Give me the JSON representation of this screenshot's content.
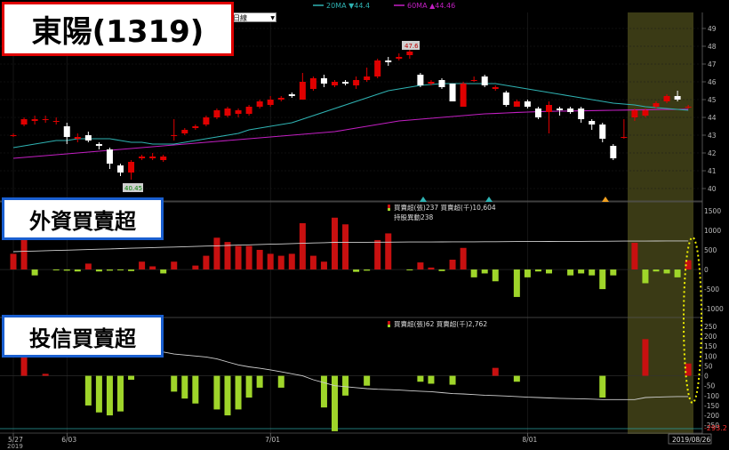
{
  "title": "東陽(1319)",
  "period_select": "日線",
  "legend": {
    "ma20": "20MA ▼44.4",
    "ma60": "60MA ▲44.46"
  },
  "price_labels": {
    "high": "47.6",
    "low": "40.45"
  },
  "price_axis": {
    "min": 39.3,
    "max": 49.9,
    "ticks": [
      "40",
      "41",
      "42",
      "43",
      "44",
      "45",
      "46",
      "47",
      "48",
      "49"
    ]
  },
  "foreign_panel": {
    "title": "外資買賣超",
    "info1": "買賣超(張)237 買賣超(千)10,604",
    "info2": "持股異動238",
    "axis": {
      "min": -1200,
      "max": 1700,
      "ticks": [
        "1500",
        "1000",
        "500",
        "0",
        "-500",
        "-1000"
      ]
    }
  },
  "trust_panel": {
    "title": "投信買賣超",
    "info1": "買賣超(張)62 買賣超(千)2,762",
    "axis": {
      "min": -285,
      "max": 290,
      "ticks": [
        "250",
        "200",
        "150",
        "100",
        "50",
        "0",
        "-50",
        "-100",
        "-150",
        "-200",
        "-250"
      ]
    },
    "last_value_label": "-293.2"
  },
  "date_labels": [
    "5/27",
    "6/03",
    "7/01",
    "8/01"
  ],
  "year_label": "2019",
  "current_date": "2019/08/26",
  "colors": {
    "up": "#e00000",
    "down": "#ffffff",
    "ma20": "#2fb3b3",
    "ma60": "#c21fc2",
    "buy": "#c81010",
    "sell": "#9fd52a",
    "highlight": "#3a3a15",
    "ellipse": "#f2f200"
  },
  "chart_data": {
    "type": "candlestick",
    "candles": [
      [
        43.0,
        43.0,
        42.9,
        43.1
      ],
      [
        43.6,
        43.9,
        43.5,
        44.0
      ],
      [
        43.8,
        43.9,
        43.6,
        44.1
      ],
      [
        43.9,
        43.9,
        43.7,
        44.1
      ],
      [
        43.8,
        43.8,
        43.6,
        44.0
      ],
      [
        43.5,
        42.9,
        42.5,
        43.7
      ],
      [
        42.8,
        42.9,
        42.6,
        43.1
      ],
      [
        43.0,
        42.7,
        42.6,
        43.2
      ],
      [
        42.5,
        42.4,
        42.2,
        42.6
      ],
      [
        42.2,
        41.4,
        41.1,
        42.3
      ],
      [
        41.3,
        40.9,
        40.7,
        41.4
      ],
      [
        40.9,
        41.5,
        40.5,
        41.6
      ],
      [
        41.7,
        41.8,
        41.6,
        41.9
      ],
      [
        41.7,
        41.8,
        41.6,
        42.0
      ],
      [
        41.6,
        41.8,
        41.5,
        41.9
      ],
      [
        43.0,
        43.0,
        42.7,
        43.9
      ],
      [
        43.1,
        43.3,
        43.0,
        43.4
      ],
      [
        43.4,
        43.5,
        43.3,
        43.6
      ],
      [
        43.6,
        44.0,
        43.5,
        44.1
      ],
      [
        44.0,
        44.4,
        43.9,
        44.5
      ],
      [
        44.1,
        44.5,
        44.0,
        44.6
      ],
      [
        44.2,
        44.4,
        44.0,
        44.5
      ],
      [
        44.2,
        44.6,
        44.1,
        44.7
      ],
      [
        44.6,
        44.9,
        44.5,
        45.0
      ],
      [
        44.7,
        45.0,
        44.6,
        45.2
      ],
      [
        45.0,
        45.1,
        44.9,
        45.2
      ],
      [
        45.3,
        45.2,
        45.1,
        45.4
      ],
      [
        45.0,
        46.0,
        45.0,
        46.5
      ],
      [
        45.6,
        46.2,
        45.5,
        46.3
      ],
      [
        46.2,
        45.9,
        45.7,
        46.4
      ],
      [
        45.8,
        46.0,
        45.7,
        46.1
      ],
      [
        46.0,
        45.9,
        45.8,
        46.1
      ],
      [
        45.8,
        46.1,
        45.6,
        46.3
      ],
      [
        46.1,
        46.3,
        46.0,
        46.8
      ],
      [
        46.3,
        47.2,
        46.2,
        47.3
      ],
      [
        47.2,
        47.1,
        46.9,
        47.4
      ],
      [
        47.3,
        47.4,
        47.2,
        47.6
      ],
      [
        47.5,
        47.7,
        47.3,
        47.9
      ],
      [
        46.4,
        45.8,
        45.7,
        46.5
      ],
      [
        45.9,
        46.0,
        45.8,
        46.1
      ],
      [
        46.1,
        45.7,
        45.6,
        46.2
      ],
      [
        45.9,
        44.9,
        44.9,
        45.9
      ],
      [
        44.6,
        45.9,
        44.6,
        46.0
      ],
      [
        46.1,
        46.1,
        46.0,
        46.3
      ],
      [
        46.3,
        45.8,
        45.7,
        46.4
      ],
      [
        45.6,
        45.7,
        45.5,
        45.8
      ],
      [
        45.4,
        44.7,
        44.6,
        45.5
      ],
      [
        44.6,
        44.9,
        44.6,
        45.0
      ],
      [
        44.9,
        44.6,
        44.5,
        45.0
      ],
      [
        44.5,
        44.0,
        43.9,
        44.6
      ],
      [
        44.3,
        44.7,
        43.1,
        44.9
      ],
      [
        44.5,
        44.4,
        44.1,
        44.6
      ],
      [
        44.5,
        44.3,
        44.2,
        44.6
      ],
      [
        44.5,
        43.9,
        43.7,
        44.6
      ],
      [
        43.8,
        43.6,
        43.3,
        43.9
      ],
      [
        43.6,
        42.8,
        42.6,
        43.7
      ],
      [
        42.4,
        41.7,
        41.6,
        42.5
      ],
      [
        42.9,
        42.9,
        42.8,
        43.9
      ],
      [
        44.0,
        44.4,
        43.8,
        44.5
      ],
      [
        44.1,
        44.4,
        44.0,
        44.5
      ],
      [
        44.6,
        44.8,
        44.5,
        44.9
      ],
      [
        44.9,
        45.2,
        44.8,
        45.3
      ],
      [
        45.2,
        45.0,
        44.9,
        45.5
      ],
      [
        44.6,
        44.6,
        44.5,
        44.7
      ]
    ],
    "ma20": [
      42.3,
      42.4,
      42.5,
      42.6,
      42.7,
      42.7,
      42.8,
      42.8,
      42.8,
      42.8,
      42.7,
      42.6,
      42.6,
      42.5,
      42.5,
      42.5,
      42.6,
      42.7,
      42.8,
      42.9,
      43.0,
      43.1,
      43.3,
      43.4,
      43.5,
      43.6,
      43.7,
      43.9,
      44.1,
      44.3,
      44.5,
      44.7,
      44.9,
      45.1,
      45.3,
      45.5,
      45.6,
      45.7,
      45.8,
      45.85,
      45.9,
      45.9,
      45.9,
      45.9,
      45.9,
      45.9,
      45.8,
      45.7,
      45.6,
      45.5,
      45.4,
      45.3,
      45.2,
      45.1,
      45.0,
      44.9,
      44.8,
      44.75,
      44.7,
      44.6,
      44.55,
      44.5,
      44.45,
      44.4
    ],
    "ma60": [
      41.7,
      41.75,
      41.8,
      41.85,
      41.9,
      41.95,
      42.0,
      42.05,
      42.1,
      42.15,
      42.2,
      42.25,
      42.3,
      42.35,
      42.4,
      42.45,
      42.5,
      42.55,
      42.6,
      42.65,
      42.7,
      42.75,
      42.8,
      42.85,
      42.9,
      42.95,
      43.0,
      43.05,
      43.1,
      43.15,
      43.2,
      43.3,
      43.4,
      43.5,
      43.6,
      43.7,
      43.8,
      43.85,
      43.9,
      43.95,
      44.0,
      44.05,
      44.1,
      44.15,
      44.2,
      44.22,
      44.25,
      44.28,
      44.3,
      44.32,
      44.34,
      44.35,
      44.36,
      44.37,
      44.38,
      44.39,
      44.4,
      44.41,
      44.42,
      44.43,
      44.44,
      44.45,
      44.45,
      44.46
    ],
    "foreign_net": [
      400,
      950,
      -150,
      0,
      -20,
      -30,
      -50,
      150,
      -50,
      -30,
      -20,
      -40,
      200,
      80,
      -100,
      200,
      0,
      100,
      350,
      810,
      700,
      600,
      600,
      500,
      400,
      350,
      400,
      1180,
      350,
      200,
      1320,
      1150,
      -60,
      -30,
      750,
      920,
      0,
      -20,
      180,
      50,
      -40,
      250,
      550,
      -200,
      -100,
      -300,
      0,
      -700,
      -200,
      -50,
      -100,
      0,
      -150,
      -100,
      -150,
      -500,
      -150,
      0,
      680,
      -350,
      -50,
      -100,
      -200,
      237
    ],
    "foreign_holdings_line": [
      1,
      1,
      1,
      1,
      1,
      1,
      1,
      1,
      1,
      1,
      1,
      1,
      1,
      1,
      1,
      1,
      1,
      1,
      1,
      1,
      1,
      1,
      1,
      1,
      1,
      1,
      1,
      1,
      1,
      1,
      1,
      1,
      1,
      1,
      1,
      1,
      1,
      1,
      1,
      1,
      1,
      1,
      1,
      1,
      1,
      1,
      1,
      1,
      1,
      1,
      1,
      1,
      1,
      1,
      1,
      1,
      1,
      1,
      1,
      1,
      1,
      1,
      1,
      1
    ],
    "trust_net": [
      0,
      120,
      0,
      10,
      0,
      0,
      0,
      -150,
      -185,
      -200,
      -180,
      -20,
      0,
      0,
      0,
      -80,
      -115,
      -140,
      0,
      -170,
      -200,
      -170,
      -110,
      -60,
      0,
      -60,
      0,
      0,
      0,
      -160,
      -280,
      -100,
      0,
      -50,
      0,
      0,
      0,
      0,
      -30,
      -40,
      0,
      -45,
      0,
      0,
      0,
      40,
      0,
      -30,
      0,
      0,
      0,
      0,
      0,
      0,
      0,
      -110,
      0,
      0,
      0,
      185,
      0,
      0,
      0,
      62
    ],
    "trust_line": [
      210,
      205,
      200,
      198,
      195,
      190,
      185,
      182,
      178,
      175,
      170,
      165,
      150,
      130,
      120,
      110,
      105,
      100,
      95,
      85,
      70,
      55,
      45,
      38,
      30,
      20,
      10,
      0,
      -20,
      -35,
      -50,
      -55,
      -60,
      -65,
      -68,
      -70,
      -72,
      -75,
      -78,
      -80,
      -85,
      -90,
      -92,
      -95,
      -98,
      -100,
      -102,
      -105,
      -108,
      -110,
      -112,
      -114,
      -115,
      -116,
      -118,
      -120,
      -120,
      -120,
      -120,
      -110,
      -108,
      -106,
      -105,
      -105
    ]
  }
}
